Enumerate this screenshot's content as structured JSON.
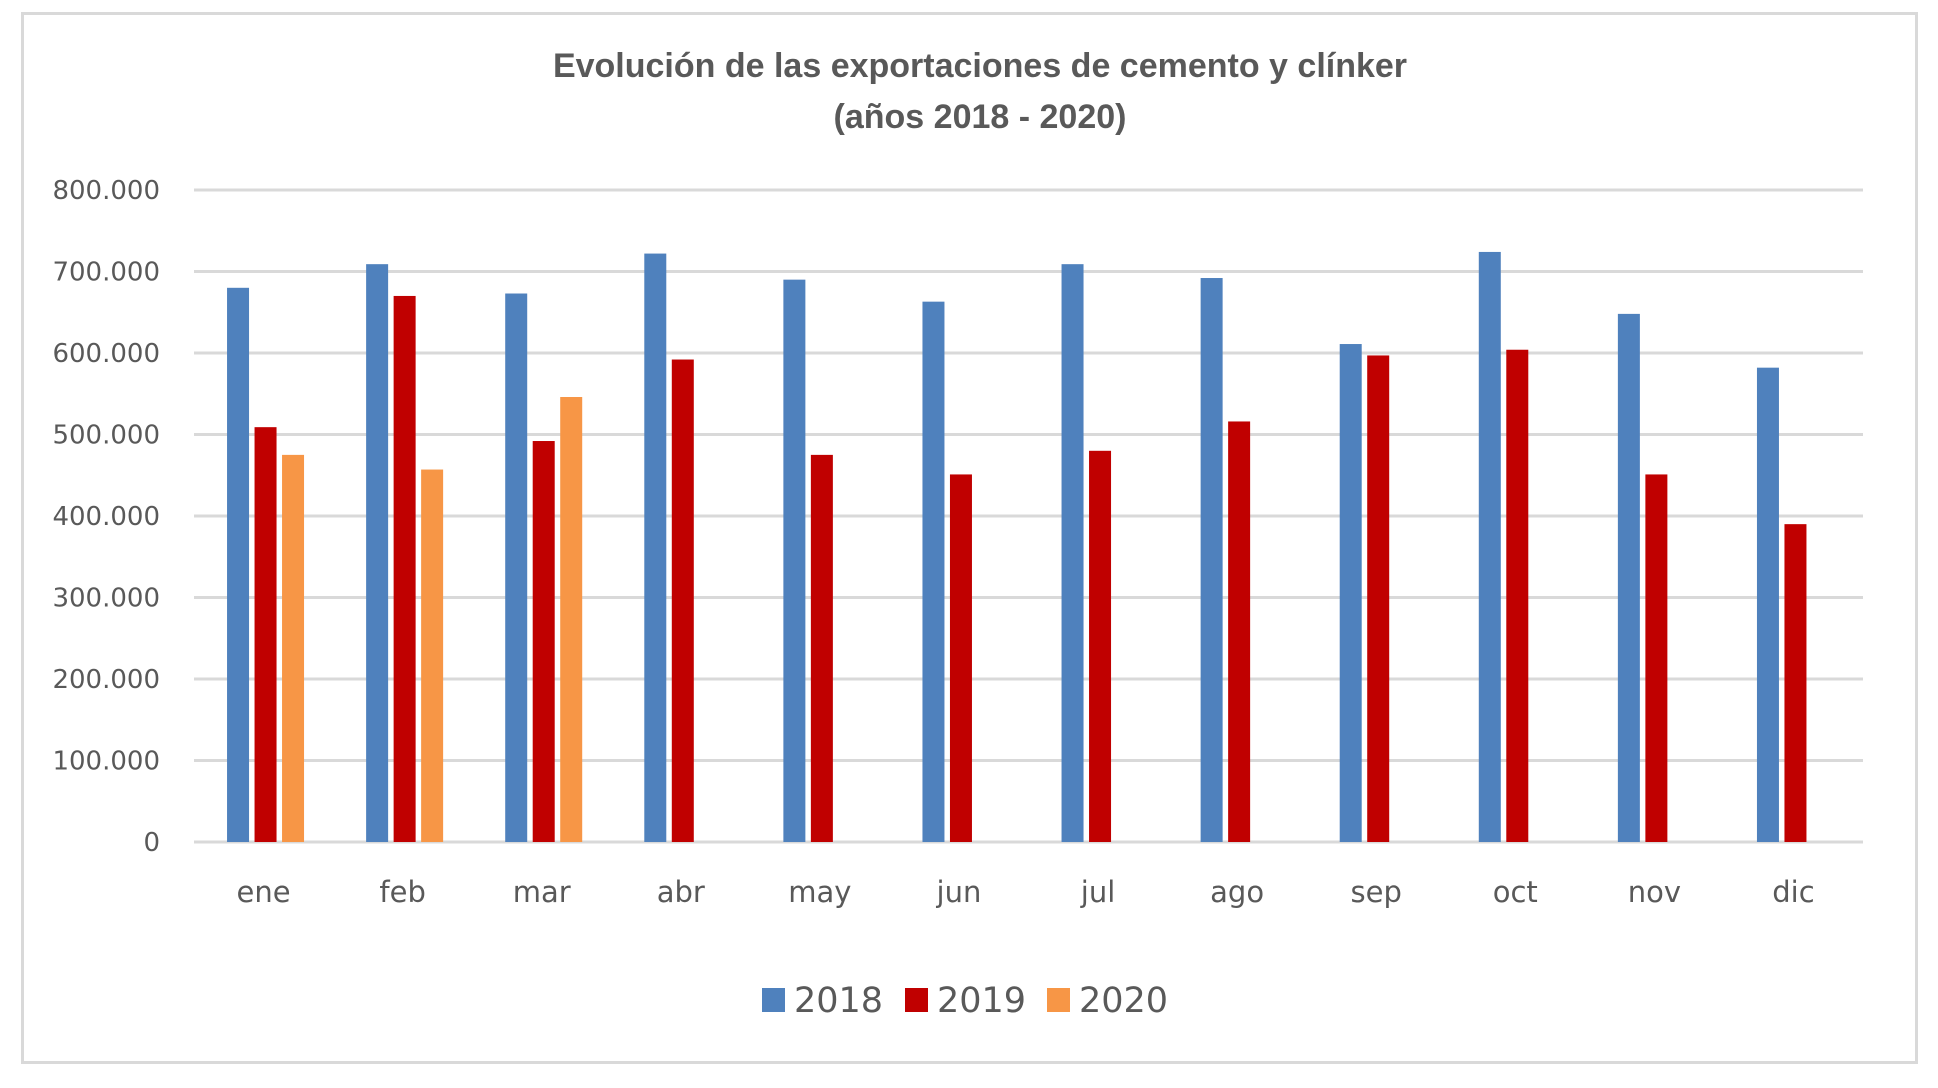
{
  "chart_data": {
    "type": "bar",
    "title": "Evolución de las exportaciones de cemento y clínker",
    "subtitle": "(años 2018 - 2020)",
    "xlabel": "",
    "ylabel": "",
    "categories": [
      "ene",
      "feb",
      "mar",
      "abr",
      "may",
      "jun",
      "jul",
      "ago",
      "sep",
      "oct",
      "nov",
      "dic"
    ],
    "series": [
      {
        "name": "2018",
        "color": "#4f81bd",
        "values": [
          680000,
          709000,
          673000,
          722000,
          690000,
          663000,
          709000,
          692000,
          611000,
          724000,
          648000,
          582000
        ]
      },
      {
        "name": "2019",
        "color": "#c00000",
        "values": [
          509000,
          670000,
          492000,
          592000,
          475000,
          451000,
          480000,
          516000,
          597000,
          604000,
          451000,
          390000
        ]
      },
      {
        "name": "2020",
        "color": "#f79646",
        "values": [
          475000,
          457000,
          546000,
          null,
          null,
          null,
          null,
          null,
          null,
          null,
          null,
          null
        ]
      }
    ],
    "ylim": [
      0,
      800000
    ],
    "yticks": [
      0,
      100000,
      200000,
      300000,
      400000,
      500000,
      600000,
      700000,
      800000
    ],
    "ytick_labels": [
      "0",
      "100.000",
      "200.000",
      "300.000",
      "400.000",
      "500.000",
      "600.000",
      "700.000",
      "800.000"
    ],
    "grid": true,
    "legend_position": "bottom"
  }
}
